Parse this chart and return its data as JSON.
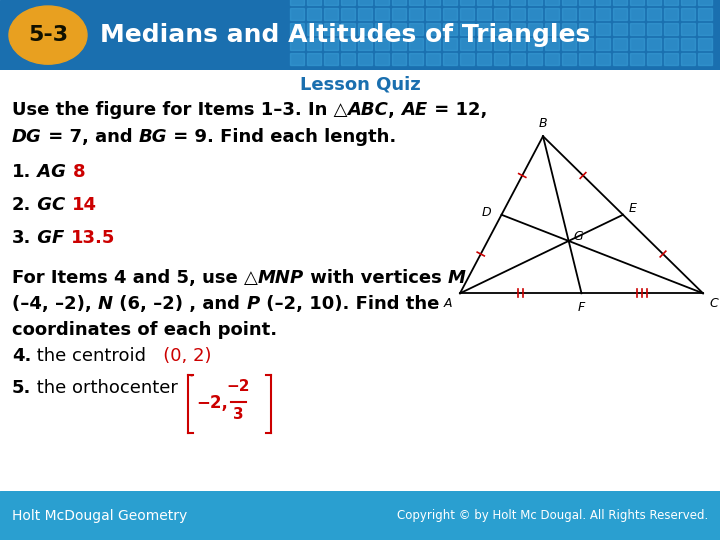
{
  "title": "Medians and Altitudes of Triangles",
  "title_number": "5-3",
  "subtitle": "Lesson Quiz",
  "header_bg_color": "#1a6faf",
  "header_text_color": "#ffffff",
  "badge_color": "#e8a020",
  "footer_text_left": "Holt McDougal Geometry",
  "footer_text_right": "Copyright © by Holt Mc Dougal. All Rights Reserved.",
  "footer_bg_color": "#2a9fd0",
  "body_bg_color": "#ffffff",
  "teal_color": "#1a6faf",
  "answer_color": "#cc0000",
  "tri_color": "#000000",
  "tick_color": "#cc0000"
}
